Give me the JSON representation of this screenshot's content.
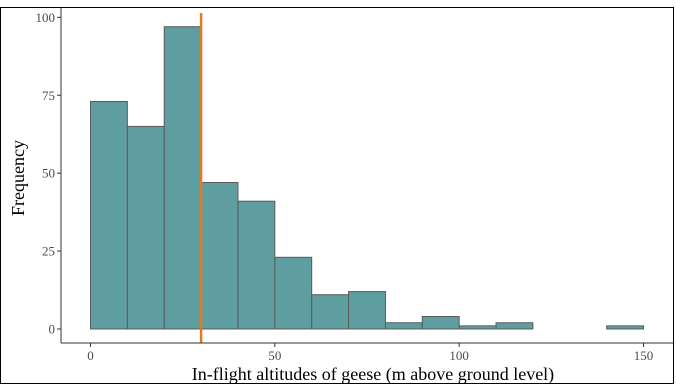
{
  "chart_data": {
    "type": "bar",
    "histogram": true,
    "title": "",
    "xlabel": "In-flight altitudes of geese (m above ground level)",
    "ylabel": "Frequency",
    "xlim": [
      -8,
      158
    ],
    "ylim": [
      -4.5,
      103
    ],
    "x_ticks": [
      0,
      50,
      100,
      150
    ],
    "y_ticks": [
      0,
      25,
      50,
      75,
      100
    ],
    "bin_width": 10,
    "bins": [
      {
        "x0": 0,
        "x1": 10,
        "count": 73
      },
      {
        "x0": 10,
        "x1": 20,
        "count": 65
      },
      {
        "x0": 20,
        "x1": 30,
        "count": 97
      },
      {
        "x0": 30,
        "x1": 40,
        "count": 47
      },
      {
        "x0": 40,
        "x1": 50,
        "count": 41
      },
      {
        "x0": 50,
        "x1": 60,
        "count": 23
      },
      {
        "x0": 60,
        "x1": 70,
        "count": 11
      },
      {
        "x0": 70,
        "x1": 80,
        "count": 12
      },
      {
        "x0": 80,
        "x1": 90,
        "count": 2
      },
      {
        "x0": 90,
        "x1": 100,
        "count": 4
      },
      {
        "x0": 100,
        "x1": 110,
        "count": 1
      },
      {
        "x0": 110,
        "x1": 120,
        "count": 2
      },
      {
        "x0": 120,
        "x1": 130,
        "count": 0
      },
      {
        "x0": 130,
        "x1": 140,
        "count": 0
      },
      {
        "x0": 140,
        "x1": 150,
        "count": 1
      }
    ],
    "reference_line": {
      "x": 30,
      "color": "#e07b24"
    },
    "grid": false,
    "legend": "none",
    "colors": {
      "bar_fill": "#5f9ea0",
      "bar_stroke": "#5a5a5a",
      "axis": "#333333",
      "tick_text": "#4d4d4d",
      "title_text": "#000000"
    }
  }
}
